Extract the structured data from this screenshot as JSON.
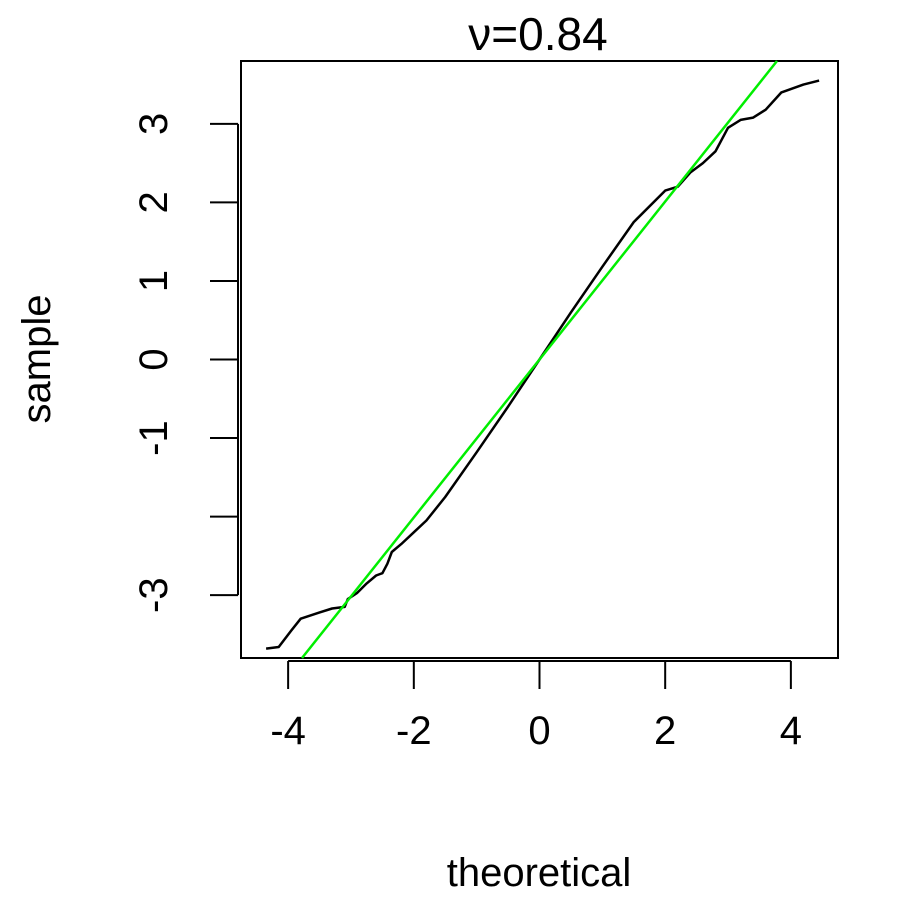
{
  "chart_data": {
    "type": "line",
    "title": "ν=0.84",
    "xlabel": "theoretical",
    "ylabel": "sample",
    "xlim": [
      -4.75,
      4.75
    ],
    "ylim": [
      -3.8,
      3.8
    ],
    "x_ticks": [
      -4,
      -2,
      0,
      2,
      4
    ],
    "x_tick_labels": [
      "-4",
      "-2",
      "0",
      "2",
      "4"
    ],
    "y_ticks": [
      -3,
      -2,
      -1,
      0,
      1,
      2,
      3
    ],
    "y_tick_labels": [
      "-3",
      "",
      "-1",
      "0",
      "1",
      "2",
      "3"
    ],
    "grid": false,
    "series": [
      {
        "color": "#000000",
        "points": [
          [
            -4.35,
            -3.68
          ],
          [
            -4.15,
            -3.66
          ],
          [
            -3.95,
            -3.45
          ],
          [
            -3.8,
            -3.3
          ],
          [
            -3.5,
            -3.22
          ],
          [
            -3.3,
            -3.17
          ],
          [
            -3.1,
            -3.15
          ],
          [
            -3.05,
            -3.05
          ],
          [
            -2.9,
            -2.97
          ],
          [
            -2.75,
            -2.85
          ],
          [
            -2.6,
            -2.75
          ],
          [
            -2.5,
            -2.72
          ],
          [
            -2.42,
            -2.6
          ],
          [
            -2.35,
            -2.45
          ],
          [
            -2.2,
            -2.35
          ],
          [
            -2.0,
            -2.2
          ],
          [
            -1.8,
            -2.05
          ],
          [
            -1.5,
            -1.75
          ],
          [
            -1.0,
            -1.18
          ],
          [
            -0.5,
            -0.6
          ],
          [
            0.0,
            0.0
          ],
          [
            0.5,
            0.6
          ],
          [
            1.0,
            1.18
          ],
          [
            1.5,
            1.75
          ],
          [
            2.0,
            2.15
          ],
          [
            2.2,
            2.2
          ],
          [
            2.4,
            2.38
          ],
          [
            2.6,
            2.5
          ],
          [
            2.8,
            2.65
          ],
          [
            3.0,
            2.95
          ],
          [
            3.2,
            3.05
          ],
          [
            3.4,
            3.08
          ],
          [
            3.6,
            3.18
          ],
          [
            3.85,
            3.4
          ],
          [
            4.2,
            3.5
          ],
          [
            4.45,
            3.55
          ]
        ]
      },
      {
        "color": "#00ee00",
        "points": [
          [
            -3.78,
            -3.8
          ],
          [
            3.78,
            3.8
          ]
        ]
      }
    ]
  }
}
